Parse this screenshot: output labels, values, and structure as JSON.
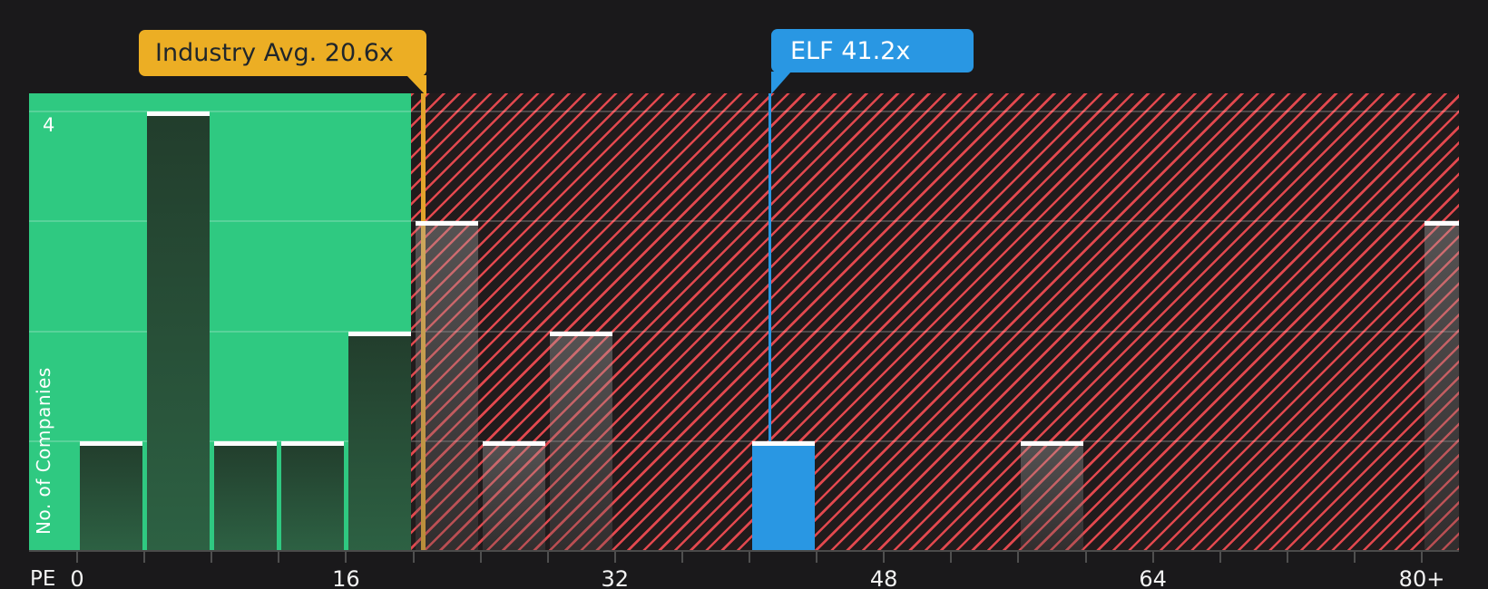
{
  "chart_data": {
    "type": "histogram",
    "title": "",
    "xlabel": "PE",
    "ylabel": "No. of Companies",
    "y_max_visible_label": "4",
    "bin_width": 4,
    "x_range": [
      0,
      84
    ],
    "y_range": [
      0,
      4.2
    ],
    "grid": true,
    "y_gridlines": [
      1,
      2,
      3,
      4
    ],
    "x_ticks": [
      {
        "label": "0",
        "value": 0
      },
      {
        "label": "16",
        "value": 16
      },
      {
        "label": "32",
        "value": 32
      },
      {
        "label": "48",
        "value": 48
      },
      {
        "label": "64",
        "value": 64
      },
      {
        "label": "80+",
        "value": 80
      }
    ],
    "green_zone_max_pe": 19.87,
    "bins": [
      {
        "range": "0-4",
        "start": 0,
        "count": 1,
        "style": "below"
      },
      {
        "range": "4-8",
        "start": 4,
        "count": 4,
        "style": "below"
      },
      {
        "range": "8-12",
        "start": 8,
        "count": 1,
        "style": "below"
      },
      {
        "range": "12-16",
        "start": 12,
        "count": 1,
        "style": "below"
      },
      {
        "range": "16-20",
        "start": 16,
        "count": 2,
        "style": "below"
      },
      {
        "range": "20-24",
        "start": 20,
        "count": 3,
        "style": "above"
      },
      {
        "range": "24-28",
        "start": 24,
        "count": 1,
        "style": "above"
      },
      {
        "range": "28-32",
        "start": 28,
        "count": 2,
        "style": "above"
      },
      {
        "range": "32-36",
        "start": 32,
        "count": 0,
        "style": "above"
      },
      {
        "range": "36-40",
        "start": 36,
        "count": 0,
        "style": "above"
      },
      {
        "range": "40-44",
        "start": 40,
        "count": 1,
        "style": "elf"
      },
      {
        "range": "44-48",
        "start": 44,
        "count": 0,
        "style": "above"
      },
      {
        "range": "48-52",
        "start": 48,
        "count": 0,
        "style": "above"
      },
      {
        "range": "52-56",
        "start": 52,
        "count": 0,
        "style": "above"
      },
      {
        "range": "56-60",
        "start": 56,
        "count": 1,
        "style": "above"
      },
      {
        "range": "60-64",
        "start": 60,
        "count": 0,
        "style": "above"
      },
      {
        "range": "64-68",
        "start": 64,
        "count": 0,
        "style": "above"
      },
      {
        "range": "68-72",
        "start": 68,
        "count": 0,
        "style": "above"
      },
      {
        "range": "72-76",
        "start": 72,
        "count": 0,
        "style": "above"
      },
      {
        "range": "76-80",
        "start": 76,
        "count": 0,
        "style": "above"
      },
      {
        "range": "80+",
        "start": 80,
        "count": 3,
        "style": "above",
        "open_ended": true
      }
    ],
    "annotations": [
      {
        "label": "Industry Avg. 20.6x",
        "value": 20.6,
        "bg": "#ecae24",
        "line_color": "#e2a42c",
        "text_color": "#20262b"
      },
      {
        "label": "ELF 41.2x",
        "value": 41.2,
        "bg": "#2997e3",
        "line_color": "#2997e3",
        "text_color": "#ffffff"
      }
    ],
    "colors": {
      "below_avg_zone": "#2fc981",
      "above_avg_hatch": "#e2484e",
      "above_avg_bg": "#211b1c",
      "below_avg_bar": "#2a5a3e",
      "elf_bar": "#2997e3",
      "bar_cap": "#fdfdfd",
      "background": "#1a191b"
    }
  }
}
